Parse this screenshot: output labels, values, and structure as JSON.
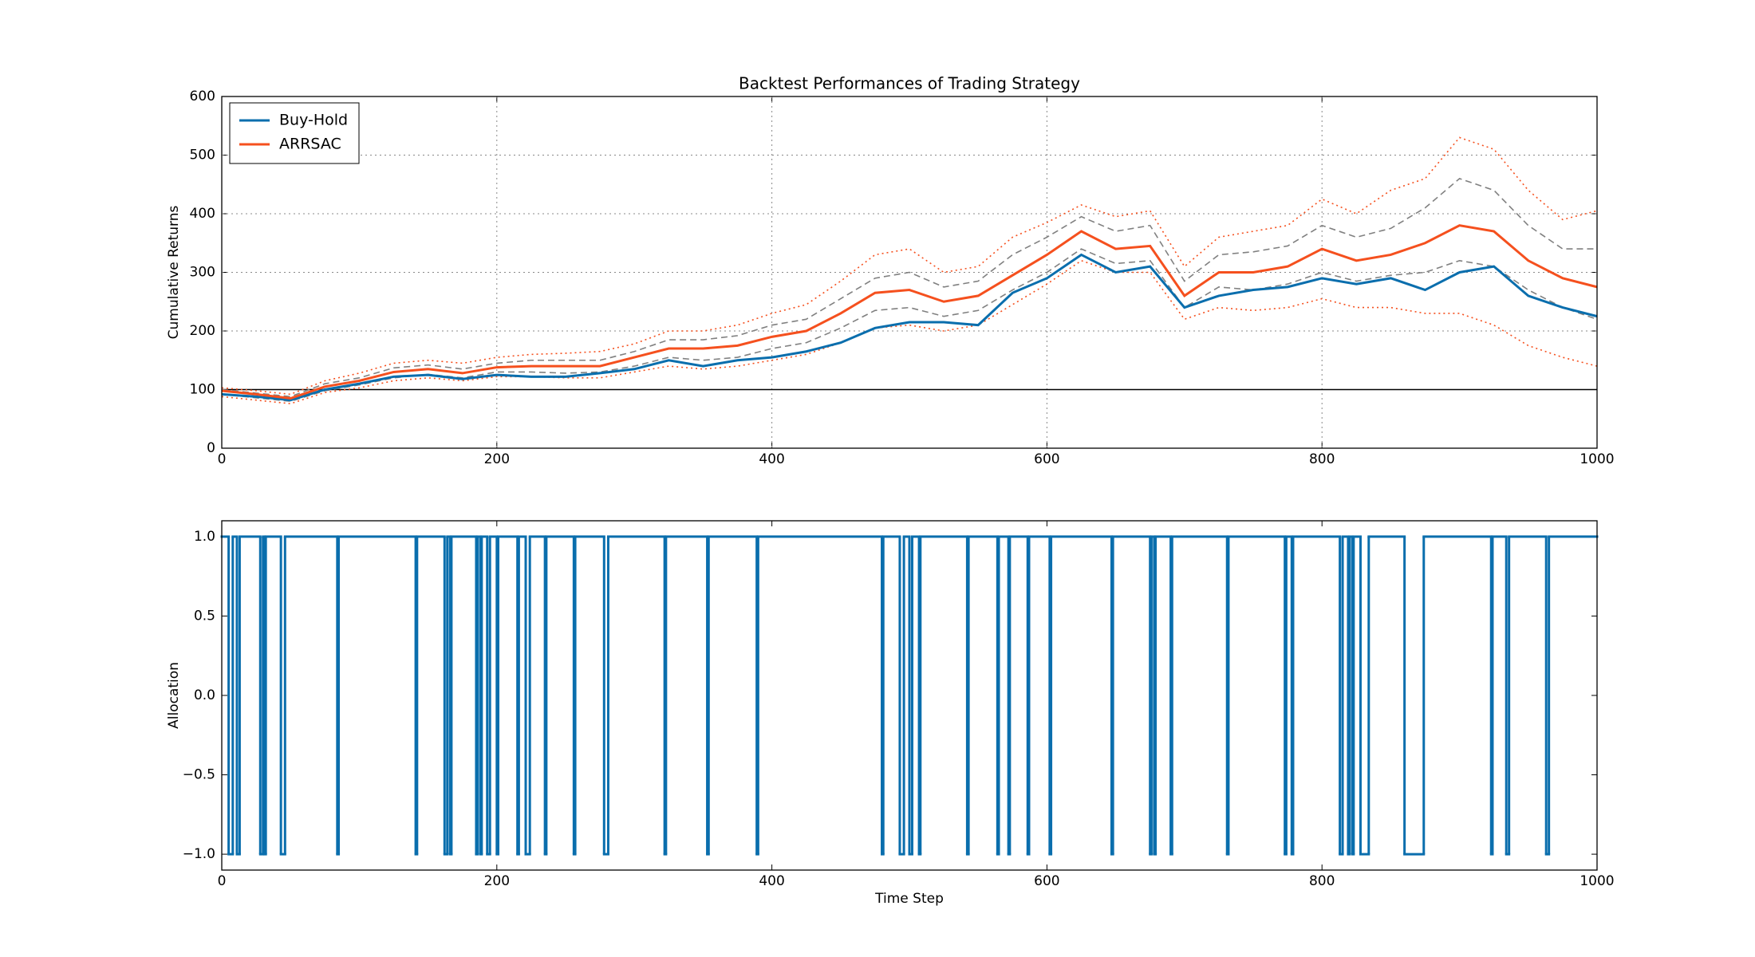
{
  "chart_data": [
    {
      "type": "line",
      "title": "Backtest Performances of Trading Strategy",
      "ylabel": "Cumulative Returns",
      "x": [
        0,
        25,
        50,
        75,
        100,
        125,
        150,
        175,
        200,
        225,
        250,
        275,
        300,
        325,
        350,
        375,
        400,
        425,
        450,
        475,
        500,
        525,
        550,
        575,
        600,
        625,
        650,
        675,
        700,
        725,
        750,
        775,
        800,
        825,
        850,
        875,
        900,
        925,
        950,
        975,
        1000
      ],
      "series": [
        {
          "color": "#808080",
          "linestyle": "dashed",
          "values": [
            100,
            94,
            88,
            110,
            120,
            137,
            142,
            135,
            145,
            150,
            150,
            150,
            165,
            185,
            185,
            192,
            210,
            220,
            255,
            290,
            300,
            275,
            285,
            330,
            360,
            395,
            370,
            380,
            285,
            330,
            335,
            345,
            380,
            360,
            375,
            410,
            460,
            440,
            380,
            340,
            340
          ]
        },
        {
          "color": "#808080",
          "linestyle": "dashed",
          "values": [
            92,
            86,
            80,
            98,
            108,
            120,
            126,
            120,
            130,
            130,
            128,
            130,
            140,
            155,
            150,
            155,
            170,
            180,
            205,
            235,
            240,
            225,
            235,
            270,
            300,
            340,
            315,
            320,
            240,
            275,
            270,
            280,
            300,
            285,
            295,
            300,
            320,
            310,
            270,
            240,
            220
          ]
        },
        {
          "color": "#f5501e",
          "linestyle": "dotted",
          "values": [
            103,
            98,
            92,
            115,
            128,
            145,
            150,
            145,
            155,
            160,
            162,
            165,
            178,
            200,
            200,
            210,
            230,
            245,
            285,
            330,
            340,
            300,
            310,
            360,
            385,
            415,
            395,
            405,
            310,
            360,
            370,
            380,
            425,
            400,
            440,
            460,
            530,
            510,
            440,
            390,
            405
          ]
        },
        {
          "color": "#f5501e",
          "linestyle": "dotted",
          "values": [
            88,
            82,
            76,
            95,
            103,
            115,
            120,
            115,
            122,
            122,
            120,
            120,
            130,
            140,
            135,
            140,
            150,
            160,
            180,
            205,
            210,
            200,
            210,
            245,
            280,
            320,
            300,
            300,
            220,
            240,
            235,
            240,
            255,
            240,
            240,
            230,
            230,
            210,
            175,
            155,
            140
          ]
        },
        {
          "name": "Buy-Hold",
          "color": "#0a6ead",
          "linestyle": "solid",
          "values": [
            92,
            88,
            82,
            100,
            110,
            122,
            125,
            118,
            125,
            122,
            122,
            128,
            135,
            150,
            140,
            150,
            155,
            165,
            180,
            205,
            215,
            215,
            210,
            265,
            290,
            330,
            300,
            310,
            240,
            260,
            270,
            275,
            290,
            280,
            290,
            270,
            300,
            310,
            260,
            240,
            225
          ]
        },
        {
          "name": "ARRSAC",
          "color": "#f5501e",
          "linestyle": "solid",
          "values": [
            98,
            92,
            85,
            105,
            115,
            130,
            135,
            128,
            138,
            140,
            140,
            140,
            155,
            170,
            170,
            175,
            190,
            200,
            230,
            265,
            270,
            250,
            260,
            295,
            330,
            370,
            340,
            345,
            260,
            300,
            300,
            310,
            340,
            320,
            330,
            350,
            380,
            370,
            320,
            290,
            275
          ]
        }
      ],
      "hline": 100,
      "xlim": [
        0,
        1000
      ],
      "xticks": [
        0,
        200,
        400,
        600,
        800,
        1000
      ],
      "ylim": [
        0,
        600
      ],
      "yticks": [
        0,
        100,
        200,
        300,
        400,
        500,
        600
      ],
      "grid": true,
      "legend": "upper left"
    },
    {
      "type": "step",
      "xlabel": "Time Step",
      "ylabel": "Allocation",
      "color": "#0a6ead",
      "x": [
        0,
        5,
        8,
        11,
        13,
        28,
        30,
        31,
        32,
        43,
        46,
        84,
        85,
        141,
        142,
        162,
        164,
        166,
        167,
        185,
        186,
        188,
        189,
        193,
        195,
        200,
        201,
        215,
        216,
        221,
        224,
        235,
        236,
        256,
        257,
        278,
        281,
        322,
        323,
        353,
        354,
        389,
        390,
        480,
        481,
        493,
        496,
        500,
        502,
        507,
        508,
        542,
        543,
        564,
        565,
        572,
        573,
        586,
        587,
        602,
        603,
        647,
        648,
        675,
        676,
        678,
        679,
        690,
        691,
        731,
        732,
        773,
        774,
        778,
        779,
        813,
        815,
        819,
        820,
        822,
        823,
        828,
        834,
        860,
        874,
        923,
        924,
        934,
        936,
        963,
        965
      ],
      "values": [
        1,
        -1,
        1,
        -1,
        1,
        -1,
        1,
        -1,
        1,
        -1,
        1,
        -1,
        1,
        -1,
        1,
        -1,
        1,
        -1,
        1,
        -1,
        1,
        -1,
        1,
        -1,
        1,
        -1,
        1,
        -1,
        1,
        -1,
        1,
        -1,
        1,
        -1,
        1,
        -1,
        1,
        -1,
        1,
        -1,
        1,
        -1,
        1,
        -1,
        1,
        -1,
        1,
        -1,
        1,
        -1,
        1,
        -1,
        1,
        -1,
        1,
        -1,
        1,
        -1,
        1,
        -1,
        1,
        -1,
        1,
        -1,
        1,
        -1,
        1,
        -1,
        1,
        -1,
        1,
        -1,
        1,
        -1,
        1,
        -1,
        1,
        -1,
        1,
        -1,
        1,
        -1,
        1,
        -1,
        1,
        -1,
        1,
        -1,
        1,
        -1,
        1
      ],
      "xlim": [
        0,
        1000
      ],
      "xticks": [
        0,
        200,
        400,
        600,
        800,
        1000
      ],
      "ylim": [
        -1.1,
        1.1
      ],
      "yticks": [
        {
          "value": -1,
          "label": "−1.0"
        },
        {
          "value": -0.5,
          "label": "−0.5"
        },
        {
          "value": 0,
          "label": "0.0"
        },
        {
          "value": 0.5,
          "label": "0.5"
        },
        {
          "value": 1,
          "label": "1.0"
        }
      ],
      "grid": false
    }
  ]
}
